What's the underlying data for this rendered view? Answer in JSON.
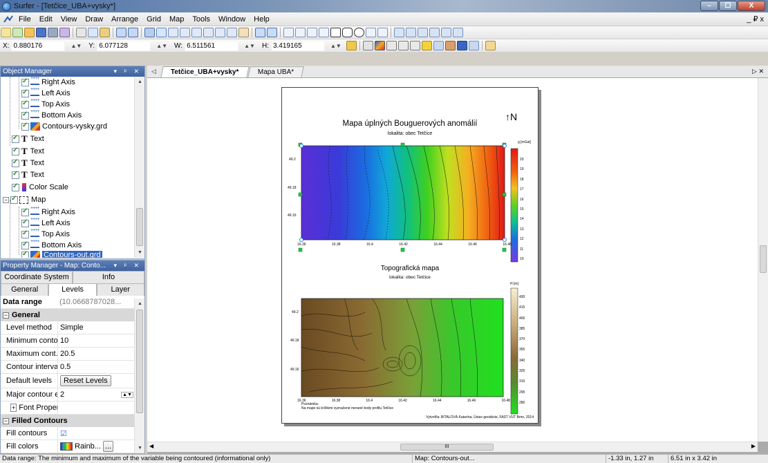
{
  "window": {
    "title": "Surfer - [Tetčice_UBA+vysky*]",
    "min": "–",
    "max": "☐",
    "close": "X"
  },
  "menu": {
    "items": [
      "File",
      "Edit",
      "View",
      "Draw",
      "Arrange",
      "Grid",
      "Map",
      "Tools",
      "Window",
      "Help"
    ],
    "mdi_controls": "_ ₽ x"
  },
  "coords": {
    "x_label": "X:",
    "x_value": "0.880176",
    "y_label": "Y:",
    "y_value": "6.077128",
    "w_label": "W:",
    "w_value": "6.511561",
    "h_label": "H:",
    "h_value": "3.419165"
  },
  "object_manager": {
    "title": "Object Manager",
    "items": [
      {
        "label": "Right Axis",
        "kind": "axis"
      },
      {
        "label": "Left Axis",
        "kind": "axis"
      },
      {
        "label": "Top Axis",
        "kind": "axis"
      },
      {
        "label": "Bottom Axis",
        "kind": "axis"
      },
      {
        "label": "Contours-vysky.grd",
        "kind": "contour"
      },
      {
        "label": "Text",
        "kind": "text"
      },
      {
        "label": "Text",
        "kind": "text"
      },
      {
        "label": "Text",
        "kind": "text"
      },
      {
        "label": "Text",
        "kind": "text"
      },
      {
        "label": "Color Scale",
        "kind": "scale"
      },
      {
        "label": "Map",
        "kind": "map"
      },
      {
        "label": "Right Axis",
        "kind": "axis"
      },
      {
        "label": "Left Axis",
        "kind": "axis"
      },
      {
        "label": "Top Axis",
        "kind": "axis"
      },
      {
        "label": "Bottom Axis",
        "kind": "axis"
      },
      {
        "label": "Contours-out.grd",
        "kind": "contour",
        "selected": true
      }
    ]
  },
  "property_manager": {
    "title": "Property Manager - Map: Conto...",
    "tabs_row1": [
      "Coordinate System",
      "Info"
    ],
    "tabs_row2": [
      "General",
      "Levels",
      "Layer"
    ],
    "data_range_label": "Data range",
    "data_range_value": "(10.0668787028...",
    "sections": {
      "general": "General",
      "filled": "Filled Contours"
    },
    "rows": {
      "level_method": {
        "k": "Level method",
        "v": "Simple"
      },
      "min_contour": {
        "k": "Minimum conto...",
        "v": "10"
      },
      "max_contour": {
        "k": "Maximum cont...",
        "v": "20.5"
      },
      "interval": {
        "k": "Contour interval",
        "v": "0.5"
      },
      "default_levels": {
        "k": "Default levels",
        "v": "Reset Levels"
      },
      "major": {
        "k": "Major contour e...",
        "v": "2"
      },
      "font": {
        "k": "Font Properti...",
        "v": ""
      },
      "fill_contours": {
        "k": "Fill contours",
        "v": "☑"
      },
      "fill_colors": {
        "k": "Fill colors",
        "v": "Rainb..."
      }
    }
  },
  "doc_tabs": [
    "Tetčice_UBA+vysky*",
    "Mapa UBA*"
  ],
  "page_content": {
    "map1_title": "Mapa úplných Bouguerových anomálií",
    "map1_subtitle": "lokalita: obec Tetčice",
    "north": "N",
    "map1_scale_unit": "g [mGal]",
    "map1_scale_ticks": [
      "20",
      "19",
      "18",
      "17",
      "16",
      "15",
      "14",
      "13",
      "12",
      "11",
      "10"
    ],
    "map1_y_ticks": [
      "49.2",
      "49.18",
      "49.16"
    ],
    "x_ticks": [
      "16.36",
      "16.38",
      "16.4",
      "16.42",
      "16.44",
      "16.46",
      "16.48"
    ],
    "map2_title": "Topografická mapa",
    "map2_subtitle": "lokalita: obec Tetčice",
    "map2_scale_unit": "H [m]",
    "map2_scale_ticks": [
      "430",
      "415",
      "400",
      "385",
      "370",
      "355",
      "340",
      "325",
      "310",
      "295",
      "280"
    ],
    "map2_y_ticks": [
      "49.2",
      "49.18",
      "49.16"
    ],
    "note_title": "Poznámka:",
    "note_text": "Na mape sú krížikmi vyznačené merané body profilu Tetčice",
    "author": "Vytvořila: BITALOVÁ Katarína, Ústav geodézie, FAST VUT Brno, 2014"
  },
  "status": {
    "message": "Data range: The minimum and maximum of the variable being contoured (informational only)",
    "object": "Map: Contours-out...",
    "position": "-1.33 in, 1.27 in",
    "size": "6.51 in x 3.42 in"
  }
}
